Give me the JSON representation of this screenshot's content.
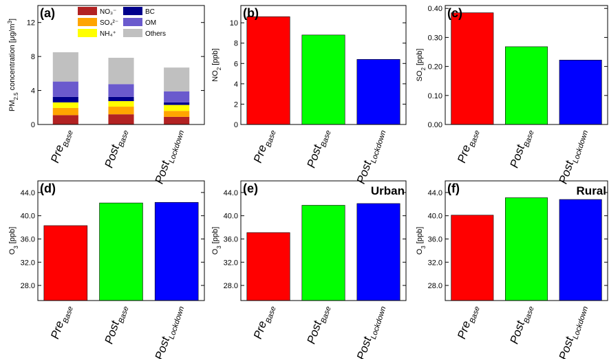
{
  "chart_data": [
    {
      "type": "stacked_bar",
      "annotation": "(a)",
      "ylabel": [
        {
          "text": "PM"
        },
        {
          "text": "2.5",
          "shift": "sub"
        },
        {
          "text": " concentration [μg/m"
        },
        {
          "text": "3",
          "shift": "super"
        },
        {
          "text": "]"
        }
      ],
      "categories": [
        "Pre",
        "Post",
        "Post"
      ],
      "category_subscripts": [
        "Base",
        "Base",
        "Lockdown"
      ],
      "series": [
        {
          "name": "NO₃⁻",
          "color": "#b22222",
          "values": [
            1.1,
            1.2,
            0.9
          ]
        },
        {
          "name": "SO₄²⁻",
          "color": "#ffa500",
          "values": [
            0.85,
            0.9,
            0.7
          ]
        },
        {
          "name": "NH₄⁺",
          "color": "#ffff00",
          "values": [
            0.65,
            0.65,
            0.7
          ]
        },
        {
          "name": "BC",
          "color": "#00008b",
          "values": [
            0.65,
            0.5,
            0.3
          ]
        },
        {
          "name": "OM",
          "color": "#6a5acd",
          "values": [
            1.8,
            1.5,
            1.3
          ]
        },
        {
          "name": "Others",
          "color": "#c0c0c0",
          "values": [
            3.45,
            3.1,
            2.8
          ]
        }
      ],
      "ylim": [
        0,
        14
      ],
      "yticks": [
        0,
        4,
        8,
        12
      ]
    },
    {
      "type": "bar",
      "annotation": "(b)",
      "ylabel": [
        {
          "text": "NO"
        },
        {
          "text": "2",
          "shift": "sub"
        },
        {
          "text": " [ppb]"
        }
      ],
      "categories": [
        "Pre",
        "Post",
        "Post"
      ],
      "category_subscripts": [
        "Base",
        "Base",
        "Lockdown"
      ],
      "values": [
        10.6,
        8.8,
        6.4
      ],
      "colors": [
        "#ff0000",
        "#00ff00",
        "#0000ff"
      ],
      "ylim": [
        0,
        11.7
      ],
      "yticks": [
        0,
        2,
        4,
        6,
        8,
        10
      ]
    },
    {
      "type": "bar",
      "annotation": "(c)",
      "ylabel": [
        {
          "text": "SO"
        },
        {
          "text": "2",
          "shift": "sub"
        },
        {
          "text": " [ppb]"
        }
      ],
      "categories": [
        "Pre",
        "Post",
        "Post"
      ],
      "category_subscripts": [
        "Base",
        "Base",
        "Lockdown"
      ],
      "values": [
        0.385,
        0.268,
        0.222
      ],
      "colors": [
        "#ff0000",
        "#00ff00",
        "#0000ff"
      ],
      "ylim": [
        0,
        0.41
      ],
      "yticks": [
        {
          "value": 0,
          "label": "0.00"
        },
        {
          "value": 0.1,
          "label": "0.10"
        },
        {
          "value": 0.2,
          "label": "0.20"
        },
        {
          "value": 0.3,
          "label": "0.30"
        },
        {
          "value": 0.4,
          "label": "0.40"
        }
      ]
    },
    {
      "type": "bar",
      "annotation": "(d)",
      "ylabel": [
        {
          "text": "O"
        },
        {
          "text": "3",
          "shift": "sub"
        },
        {
          "text": " [ppb]"
        }
      ],
      "categories": [
        "Pre",
        "Post",
        "Post"
      ],
      "category_subscripts": [
        "Base",
        "Base",
        "Lockdown"
      ],
      "values": [
        38.3,
        42.2,
        42.3
      ],
      "colors": [
        "#ff0000",
        "#00ff00",
        "#0000ff"
      ],
      "ylim": [
        25.4,
        46
      ],
      "yticks": [
        {
          "value": 28,
          "label": "28.0"
        },
        {
          "value": 32,
          "label": "32.0"
        },
        {
          "value": 36,
          "label": "36.0"
        },
        {
          "value": 40,
          "label": "40.0"
        },
        {
          "value": 44,
          "label": "44.0"
        }
      ]
    },
    {
      "type": "bar",
      "annotation": "(e)",
      "annotation_right": "Urban",
      "ylabel": [
        {
          "text": "O"
        },
        {
          "text": "3",
          "shift": "sub"
        },
        {
          "text": " [ppb]"
        }
      ],
      "categories": [
        "Pre",
        "Post",
        "Post"
      ],
      "category_subscripts": [
        "Base",
        "Base",
        "Lockdown"
      ],
      "values": [
        37.1,
        41.8,
        42.1
      ],
      "colors": [
        "#ff0000",
        "#00ff00",
        "#0000ff"
      ],
      "ylim": [
        25.4,
        46
      ],
      "yticks": [
        {
          "value": 28,
          "label": "28.0"
        },
        {
          "value": 32,
          "label": "32.0"
        },
        {
          "value": 36,
          "label": "36.0"
        },
        {
          "value": 40,
          "label": "40.0"
        },
        {
          "value": 44,
          "label": "44.0"
        }
      ]
    },
    {
      "type": "bar",
      "annotation": "(f)",
      "annotation_right": "Rural",
      "ylabel": [
        {
          "text": "O"
        },
        {
          "text": "3",
          "shift": "sub"
        },
        {
          "text": " [ppb]"
        }
      ],
      "categories": [
        "Pre",
        "Post",
        "Post"
      ],
      "category_subscripts": [
        "Base",
        "Base",
        "Lockdown"
      ],
      "values": [
        40.1,
        43.1,
        42.8
      ],
      "colors": [
        "#ff0000",
        "#00ff00",
        "#0000ff"
      ],
      "ylim": [
        25.4,
        46
      ],
      "yticks": [
        {
          "value": 28,
          "label": "28.0"
        },
        {
          "value": 32,
          "label": "32.0"
        },
        {
          "value": 36,
          "label": "36.0"
        },
        {
          "value": 40,
          "label": "40.0"
        },
        {
          "value": 44,
          "label": "44.0"
        }
      ]
    }
  ]
}
